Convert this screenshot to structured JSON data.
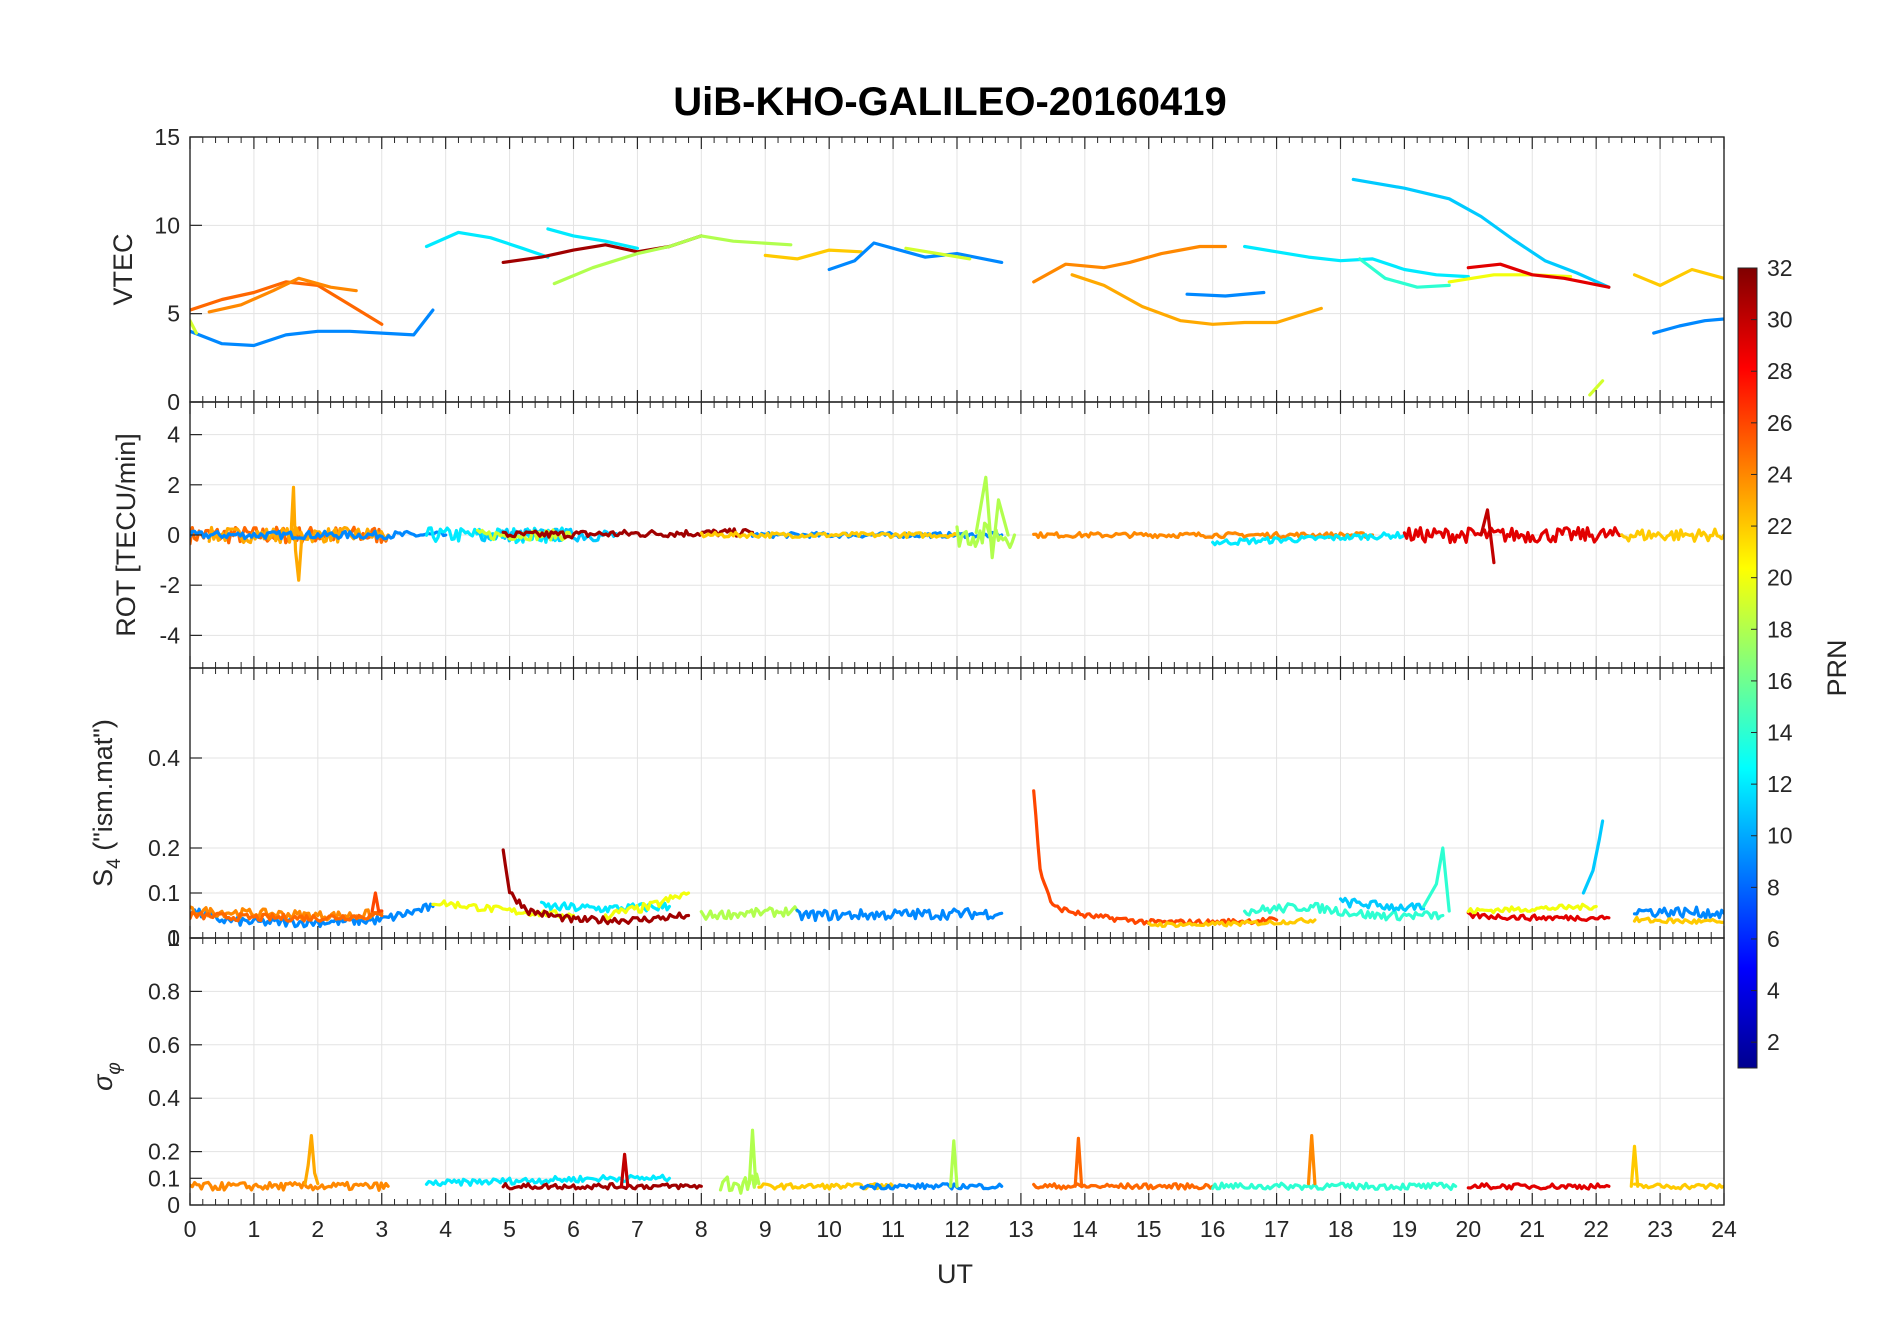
{
  "title": "UiB-KHO-GALILEO-20160419",
  "xlabel": "UT",
  "colorbar": {
    "label": "PRN",
    "range": [
      1,
      32
    ],
    "ticks": [
      "2",
      "4",
      "6",
      "8",
      "10",
      "12",
      "14",
      "16",
      "18",
      "20",
      "22",
      "24",
      "26",
      "28",
      "30",
      "32"
    ]
  },
  "chart_data": [
    {
      "type": "line",
      "panel": "vtec",
      "ylabel": "VTEC",
      "ylim": [
        0,
        15
      ],
      "xlim": [
        0,
        24
      ],
      "yticks": [
        "0",
        "5",
        "10",
        "15"
      ],
      "xticks": [
        "0",
        "1",
        "2",
        "3",
        "4",
        "5",
        "6",
        "7",
        "8",
        "9",
        "10",
        "11",
        "12",
        "13",
        "14",
        "15",
        "16",
        "17",
        "18",
        "19",
        "20",
        "21",
        "22",
        "23",
        "24"
      ],
      "series": [
        {
          "prn": 9,
          "x": [
            0,
            0.5,
            1,
            1.5,
            2,
            2.5,
            3,
            3.5,
            3.8
          ],
          "y": [
            4,
            3.3,
            3.2,
            3.8,
            4,
            4,
            3.9,
            3.8,
            5.2
          ]
        },
        {
          "prn": 25,
          "x": [
            0,
            0.5,
            1,
            1.5,
            2,
            2.5,
            3
          ],
          "y": [
            5.2,
            5.8,
            6.2,
            6.8,
            6.6,
            5.5,
            4.4
          ]
        },
        {
          "prn": 24,
          "x": [
            0.3,
            0.8,
            1.3,
            1.7,
            2.2,
            2.6
          ],
          "y": [
            5.1,
            5.5,
            6.3,
            7,
            6.5,
            6.3
          ]
        },
        {
          "prn": 19,
          "x": [
            0,
            0.1
          ],
          "y": [
            4.6,
            3.9
          ]
        },
        {
          "prn": 12,
          "x": [
            3.7,
            4.2,
            4.7,
            5.2,
            5.6
          ],
          "y": [
            8.8,
            9.6,
            9.3,
            8.7,
            8.2
          ]
        },
        {
          "prn": 31,
          "x": [
            4.9,
            5.5,
            6,
            6.5,
            7,
            7.5,
            8
          ],
          "y": [
            7.9,
            8.2,
            8.6,
            8.9,
            8.5,
            8.8,
            9.4
          ]
        },
        {
          "prn": 12,
          "x": [
            5.6,
            6,
            6.5,
            7
          ],
          "y": [
            9.8,
            9.4,
            9.1,
            8.7
          ]
        },
        {
          "prn": 18,
          "x": [
            5.7,
            6.3,
            7,
            7.5,
            8,
            8.5,
            9.4
          ],
          "y": [
            6.7,
            7.6,
            8.4,
            8.8,
            9.4,
            9.1,
            8.9
          ]
        },
        {
          "prn": 22,
          "x": [
            9,
            9.5,
            10,
            10.5
          ],
          "y": [
            8.3,
            8.1,
            8.6,
            8.5
          ]
        },
        {
          "prn": 9,
          "x": [
            10,
            10.4,
            10.7,
            11,
            11.5,
            12,
            12.7
          ],
          "y": [
            7.5,
            8,
            9,
            8.7,
            8.2,
            8.4,
            7.9
          ]
        },
        {
          "prn": 19,
          "x": [
            11.2,
            11.7,
            12.2
          ],
          "y": [
            8.7,
            8.4,
            8.1
          ]
        },
        {
          "prn": 24,
          "x": [
            13.2,
            13.7,
            14.3,
            14.7,
            15.2,
            15.8,
            16.2
          ],
          "y": [
            6.8,
            7.8,
            7.6,
            7.9,
            8.4,
            8.8,
            8.8
          ]
        },
        {
          "prn": 23,
          "x": [
            13.8,
            14.3,
            14.9,
            15.5,
            16,
            16.5,
            17,
            17.7
          ],
          "y": [
            7.2,
            6.6,
            5.4,
            4.6,
            4.4,
            4.5,
            4.5,
            5.3
          ]
        },
        {
          "prn": 9,
          "x": [
            15.6,
            16.2,
            16.8
          ],
          "y": [
            6.1,
            6,
            6.2
          ]
        },
        {
          "prn": 12,
          "x": [
            16.5,
            17,
            17.5,
            18,
            18.5,
            19,
            19.5,
            20
          ],
          "y": [
            8.8,
            8.5,
            8.2,
            8,
            8.1,
            7.5,
            7.2,
            7.1
          ]
        },
        {
          "prn": 14,
          "x": [
            18.3,
            18.7,
            19.2,
            19.7
          ],
          "y": [
            8.1,
            7,
            6.5,
            6.6
          ]
        },
        {
          "prn": 11,
          "x": [
            18.2,
            19,
            19.7,
            20.2,
            20.7,
            21.2,
            21.7,
            22.2
          ],
          "y": [
            12.6,
            12.1,
            11.5,
            10.5,
            9.2,
            8,
            7.3,
            6.5
          ]
        },
        {
          "prn": 20,
          "x": [
            19.7,
            20.4,
            21,
            21.6
          ],
          "y": [
            6.8,
            7.2,
            7.2,
            7.1
          ]
        },
        {
          "prn": 29,
          "x": [
            20,
            20.5,
            21,
            21.5,
            22.2
          ],
          "y": [
            7.6,
            7.8,
            7.2,
            7,
            6.5
          ]
        },
        {
          "prn": 19,
          "x": [
            21.9,
            22.1
          ],
          "y": [
            0.4,
            1.2
          ]
        },
        {
          "prn": 22,
          "x": [
            22.6,
            23,
            23.5,
            24
          ],
          "y": [
            7.2,
            6.6,
            7.5,
            7
          ]
        },
        {
          "prn": 9,
          "x": [
            22.9,
            23.3,
            23.7,
            24
          ],
          "y": [
            3.9,
            4.3,
            4.6,
            4.7
          ]
        }
      ]
    },
    {
      "type": "line",
      "panel": "rot",
      "ylabel": "ROT [TECU/min]",
      "ylim": [
        -5.3,
        5.3
      ],
      "yticks": [
        "-4",
        "-2",
        "0",
        "2",
        "4"
      ],
      "series": [
        {
          "prn": 25,
          "x": [
            0,
            3.1
          ],
          "y": [
            0,
            0
          ],
          "noise": 0.35
        },
        {
          "prn": 23,
          "x": [
            0.3,
            3.1
          ],
          "y": [
            0,
            0
          ],
          "noise": 0.3
        },
        {
          "prn": 23,
          "x": [
            1.58,
            1.62,
            1.65,
            1.7,
            1.75
          ],
          "y": [
            0,
            1.9,
            -0.6,
            -1.8,
            0
          ]
        },
        {
          "prn": 9,
          "x": [
            0,
            4
          ],
          "y": [
            0,
            0
          ],
          "noise": 0.15
        },
        {
          "prn": 12,
          "x": [
            3.7,
            6
          ],
          "y": [
            0,
            0
          ],
          "noise": 0.3
        },
        {
          "prn": 11,
          "x": [
            4.5,
            6.7
          ],
          "y": [
            0,
            0
          ],
          "noise": 0.25
        },
        {
          "prn": 19,
          "x": [
            4.5,
            6
          ],
          "y": [
            0,
            0
          ],
          "noise": 0.2
        },
        {
          "prn": 31,
          "x": [
            4.9,
            8.8
          ],
          "y": [
            0,
            0.1
          ],
          "noise": 0.15
        },
        {
          "prn": 9,
          "x": [
            8.8,
            12.7
          ],
          "y": [
            0,
            0
          ],
          "noise": 0.1
        },
        {
          "prn": 22,
          "x": [
            8,
            12
          ],
          "y": [
            0,
            0
          ],
          "noise": 0.1
        },
        {
          "prn": 18,
          "x": [
            12,
            12.9
          ],
          "y": [
            0,
            0
          ],
          "noise": 0.5
        },
        {
          "prn": 18,
          "x": [
            12.3,
            12.45,
            12.55,
            12.65,
            12.8
          ],
          "y": [
            0.1,
            2.3,
            -0.9,
            1.4,
            0
          ]
        },
        {
          "prn": 24,
          "x": [
            13.2,
            18.5
          ],
          "y": [
            0,
            0
          ],
          "noise": 0.1
        },
        {
          "prn": 12,
          "x": [
            16,
            19
          ],
          "y": [
            -0.3,
            0
          ],
          "noise": 0.12
        },
        {
          "prn": 29,
          "x": [
            19,
            22.4
          ],
          "y": [
            0,
            0
          ],
          "noise": 0.3
        },
        {
          "prn": 30,
          "x": [
            20.2,
            20.3,
            20.4
          ],
          "y": [
            0,
            1,
            -1.1
          ]
        },
        {
          "prn": 22,
          "x": [
            22.4,
            24
          ],
          "y": [
            0,
            0
          ],
          "noise": 0.25
        }
      ]
    },
    {
      "type": "line",
      "panel": "s4",
      "ylabel": "S4 (\"ism.mat\")",
      "ylim": [
        0,
        0.6
      ],
      "yticks": [
        "0",
        "0.1",
        "0.2",
        "0.4"
      ],
      "series": [
        {
          "prn": 9,
          "x": [
            0,
            0.5,
            1,
            2,
            3,
            3.8
          ],
          "y": [
            0.06,
            0.04,
            0.035,
            0.035,
            0.04,
            0.07
          ],
          "noise": 0.01
        },
        {
          "prn": 24,
          "x": [
            0,
            1,
            2,
            2.5,
            3
          ],
          "y": [
            0.06,
            0.055,
            0.05,
            0.05,
            0.055
          ],
          "noise": 0.01
        },
        {
          "prn": 25,
          "x": [
            0,
            1,
            2,
            3
          ],
          "y": [
            0.05,
            0.045,
            0.045,
            0.05
          ],
          "noise": 0.008
        },
        {
          "prn": 26,
          "x": [
            2.85,
            2.9,
            2.95,
            3
          ],
          "y": [
            0.06,
            0.1,
            0.06,
            0.06
          ]
        },
        {
          "prn": 20,
          "x": [
            3.8,
            5,
            6
          ],
          "y": [
            0.08,
            0.06,
            0.05
          ],
          "noise": 0.008
        },
        {
          "prn": 31,
          "x": [
            4.9,
            5,
            5.3,
            6,
            7,
            7.8
          ],
          "y": [
            0.2,
            0.1,
            0.06,
            0.04,
            0.04,
            0.05
          ],
          "noise": 0.008
        },
        {
          "prn": 12,
          "x": [
            5.5,
            6.5,
            7.5
          ],
          "y": [
            0.07,
            0.065,
            0.07
          ],
          "noise": 0.01
        },
        {
          "prn": 20,
          "x": [
            6.5,
            7.2,
            7.8
          ],
          "y": [
            0.05,
            0.07,
            0.1
          ],
          "noise": 0.01
        },
        {
          "prn": 18,
          "x": [
            8,
            9.5
          ],
          "y": [
            0.05,
            0.06
          ],
          "noise": 0.01
        },
        {
          "prn": 9,
          "x": [
            9.5,
            12.7
          ],
          "y": [
            0.05,
            0.055
          ],
          "noise": 0.012
        },
        {
          "prn": 26,
          "x": [
            13.2,
            13.3,
            13.5,
            14,
            15,
            16,
            17
          ],
          "y": [
            0.33,
            0.15,
            0.07,
            0.05,
            0.035,
            0.035,
            0.04
          ],
          "noise": 0.006
        },
        {
          "prn": 22,
          "x": [
            15,
            16,
            17,
            17.6
          ],
          "y": [
            0.03,
            0.03,
            0.035,
            0.04
          ],
          "noise": 0.005
        },
        {
          "prn": 14,
          "x": [
            16.5,
            17.5,
            18.5,
            19.6
          ],
          "y": [
            0.06,
            0.07,
            0.05,
            0.05
          ],
          "noise": 0.01
        },
        {
          "prn": 11,
          "x": [
            18,
            18.8,
            19.3
          ],
          "y": [
            0.08,
            0.07,
            0.065
          ],
          "noise": 0.01
        },
        {
          "prn": 14,
          "x": [
            19.3,
            19.5,
            19.6,
            19.7
          ],
          "y": [
            0.07,
            0.12,
            0.2,
            0.06
          ]
        },
        {
          "prn": 29,
          "x": [
            20,
            21,
            22.2
          ],
          "y": [
            0.05,
            0.045,
            0.045
          ],
          "noise": 0.006
        },
        {
          "prn": 20,
          "x": [
            20,
            21,
            22
          ],
          "y": [
            0.06,
            0.065,
            0.07
          ],
          "noise": 0.006
        },
        {
          "prn": 11,
          "x": [
            21.8,
            21.95,
            22.05,
            22.1
          ],
          "y": [
            0.1,
            0.15,
            0.22,
            0.26
          ]
        },
        {
          "prn": 9,
          "x": [
            22.6,
            24
          ],
          "y": [
            0.06,
            0.055
          ],
          "noise": 0.012
        },
        {
          "prn": 22,
          "x": [
            22.6,
            24
          ],
          "y": [
            0.04,
            0.035
          ],
          "noise": 0.006
        }
      ]
    },
    {
      "type": "line",
      "panel": "sigma_phi",
      "ylabel": "σφ",
      "ylim": [
        0,
        1
      ],
      "yticks": [
        "0",
        "0.1",
        "0.2",
        "0.4",
        "0.6",
        "0.8",
        "1"
      ],
      "series": [
        {
          "prn": 24,
          "x": [
            0,
            3.1
          ],
          "y": [
            0.07,
            0.07
          ],
          "noise": 0.015
        },
        {
          "prn": 23,
          "x": [
            1.8,
            1.85,
            1.9,
            1.95,
            2
          ],
          "y": [
            0.08,
            0.15,
            0.26,
            0.12,
            0.08
          ]
        },
        {
          "prn": 12,
          "x": [
            3.7,
            5,
            6.5,
            7.5
          ],
          "y": [
            0.08,
            0.09,
            0.1,
            0.1
          ],
          "noise": 0.012
        },
        {
          "prn": 31,
          "x": [
            4.9,
            6,
            7,
            8
          ],
          "y": [
            0.07,
            0.07,
            0.07,
            0.07
          ],
          "noise": 0.01
        },
        {
          "prn": 30,
          "x": [
            6.75,
            6.8,
            6.85
          ],
          "y": [
            0.07,
            0.19,
            0.07
          ]
        },
        {
          "prn": 18,
          "x": [
            8.3,
            8.9
          ],
          "y": [
            0.08,
            0.08
          ],
          "noise": 0.04
        },
        {
          "prn": 18,
          "x": [
            8.75,
            8.8,
            8.85
          ],
          "y": [
            0.08,
            0.28,
            0.08
          ]
        },
        {
          "prn": 22,
          "x": [
            8.9,
            11
          ],
          "y": [
            0.07,
            0.07
          ],
          "noise": 0.01
        },
        {
          "prn": 9,
          "x": [
            10.5,
            12.7
          ],
          "y": [
            0.07,
            0.07
          ],
          "noise": 0.01
        },
        {
          "prn": 18,
          "x": [
            11.9,
            11.95,
            12
          ],
          "y": [
            0.07,
            0.24,
            0.07
          ]
        },
        {
          "prn": 25,
          "x": [
            13.2,
            16
          ],
          "y": [
            0.07,
            0.07
          ],
          "noise": 0.01
        },
        {
          "prn": 25,
          "x": [
            13.85,
            13.9,
            13.95
          ],
          "y": [
            0.07,
            0.25,
            0.07
          ]
        },
        {
          "prn": 14,
          "x": [
            16,
            19.8
          ],
          "y": [
            0.07,
            0.07
          ],
          "noise": 0.012
        },
        {
          "prn": 24,
          "x": [
            17.5,
            17.55,
            17.6
          ],
          "y": [
            0.08,
            0.26,
            0.08
          ]
        },
        {
          "prn": 29,
          "x": [
            20,
            22.2
          ],
          "y": [
            0.07,
            0.07
          ],
          "noise": 0.01
        },
        {
          "prn": 22,
          "x": [
            22.55,
            22.6,
            22.65
          ],
          "y": [
            0.07,
            0.22,
            0.07
          ]
        },
        {
          "prn": 22,
          "x": [
            22.6,
            24
          ],
          "y": [
            0.07,
            0.07
          ],
          "noise": 0.01
        }
      ]
    }
  ]
}
